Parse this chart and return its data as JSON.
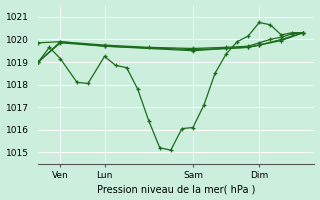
{
  "bg_color": "#cceedd",
  "line_color": "#1a6b1a",
  "grid_color": "#b8ddd8",
  "xlabel": "Pression niveau de la mer( hPa )",
  "xlim": [
    0,
    100
  ],
  "ylim": [
    1014.5,
    1021.5
  ],
  "yticks": [
    1015,
    1016,
    1017,
    1018,
    1019,
    1020,
    1021
  ],
  "xtick_positions": [
    8,
    24,
    56,
    80
  ],
  "xtick_labels": [
    "Ven",
    "Lun",
    "Sam",
    "Dim"
  ],
  "vlines": [
    8,
    24,
    56,
    80
  ],
  "series1": {
    "x": [
      0,
      4,
      8,
      14,
      18,
      24,
      28,
      32,
      36,
      40,
      44,
      48,
      52,
      56,
      60,
      64,
      68,
      72,
      76,
      80,
      84,
      88,
      92,
      96
    ],
    "y": [
      1019.0,
      1019.65,
      1019.15,
      1018.1,
      1018.05,
      1019.25,
      1018.85,
      1018.75,
      1017.8,
      1016.4,
      1015.2,
      1015.1,
      1016.05,
      1016.1,
      1017.1,
      1018.5,
      1019.35,
      1019.9,
      1020.15,
      1020.75,
      1020.65,
      1020.2,
      1020.3,
      1020.3
    ]
  },
  "series2": {
    "x": [
      0,
      8,
      24,
      40,
      56,
      68,
      76,
      80,
      84,
      88,
      92,
      96
    ],
    "y": [
      1019.85,
      1019.9,
      1019.75,
      1019.65,
      1019.6,
      1019.65,
      1019.7,
      1019.85,
      1020.0,
      1020.1,
      1020.25,
      1020.3
    ]
  },
  "series3": {
    "x": [
      0,
      8,
      24,
      56,
      68,
      76,
      80,
      88,
      96
    ],
    "y": [
      1019.0,
      1019.85,
      1019.7,
      1019.55,
      1019.6,
      1019.65,
      1019.75,
      1019.95,
      1020.3
    ]
  },
  "series4": {
    "x": [
      0,
      8,
      24,
      56,
      68,
      76,
      80,
      88,
      96
    ],
    "y": [
      1019.0,
      1019.9,
      1019.7,
      1019.5,
      1019.6,
      1019.65,
      1019.75,
      1020.0,
      1020.3
    ]
  }
}
